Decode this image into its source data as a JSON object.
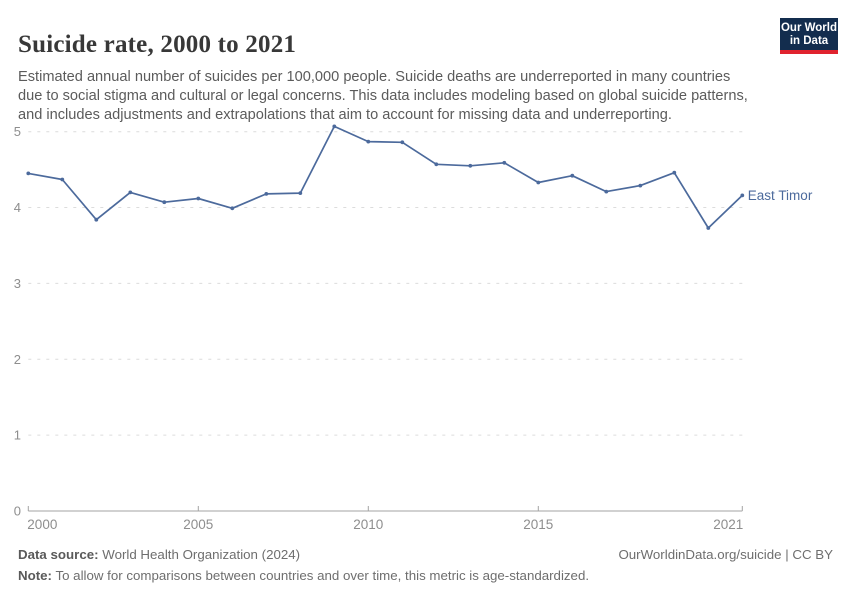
{
  "header": {
    "title": "Suicide rate, 2000 to 2021",
    "subtitle": "Estimated annual number of suicides per 100,000 people. Suicide deaths are underreported in many countries due to social stigma and cultural or legal concerns. This data includes modeling based on global suicide patterns, and includes adjustments and extrapolations that aim to account for missing data and underreporting.",
    "logo": {
      "line1": "Our World",
      "line2": "in Data",
      "bg_color": "#132d4e",
      "accent_color": "#e0232e"
    }
  },
  "chart_data": {
    "type": "line",
    "title": "Suicide rate, 2000 to 2021",
    "xlabel": "",
    "ylabel": "",
    "x": [
      2000,
      2001,
      2002,
      2003,
      2004,
      2005,
      2006,
      2007,
      2008,
      2009,
      2010,
      2011,
      2012,
      2013,
      2014,
      2015,
      2016,
      2017,
      2018,
      2019,
      2020,
      2021
    ],
    "series": [
      {
        "name": "East Timor",
        "color": "#4c6a9c",
        "values": [
          4.45,
          4.37,
          3.84,
          4.2,
          4.07,
          4.12,
          3.99,
          4.18,
          4.19,
          5.07,
          4.87,
          4.86,
          4.57,
          4.55,
          4.59,
          4.33,
          4.42,
          4.21,
          4.29,
          4.46,
          3.73,
          4.16
        ]
      }
    ],
    "ylim": [
      0,
      5
    ],
    "yticks": [
      0,
      1,
      2,
      3,
      4,
      5
    ],
    "xticks": [
      2000,
      2005,
      2010,
      2015,
      2021
    ],
    "grid": "horizontal-dashed",
    "legend_position": "end-of-line",
    "grid_color": "#dcdcdc",
    "axis_color": "#a3a3a3",
    "tick_label_color": "#8e8e8e"
  },
  "footer": {
    "datasource_label": "Data source:",
    "datasource_value": " World Health Organization (2024)",
    "rights": "OurWorldinData.org/suicide | CC BY",
    "note_label": "Note:",
    "note_value": " To allow for comparisons between countries and over time, this metric is age-standardized."
  }
}
